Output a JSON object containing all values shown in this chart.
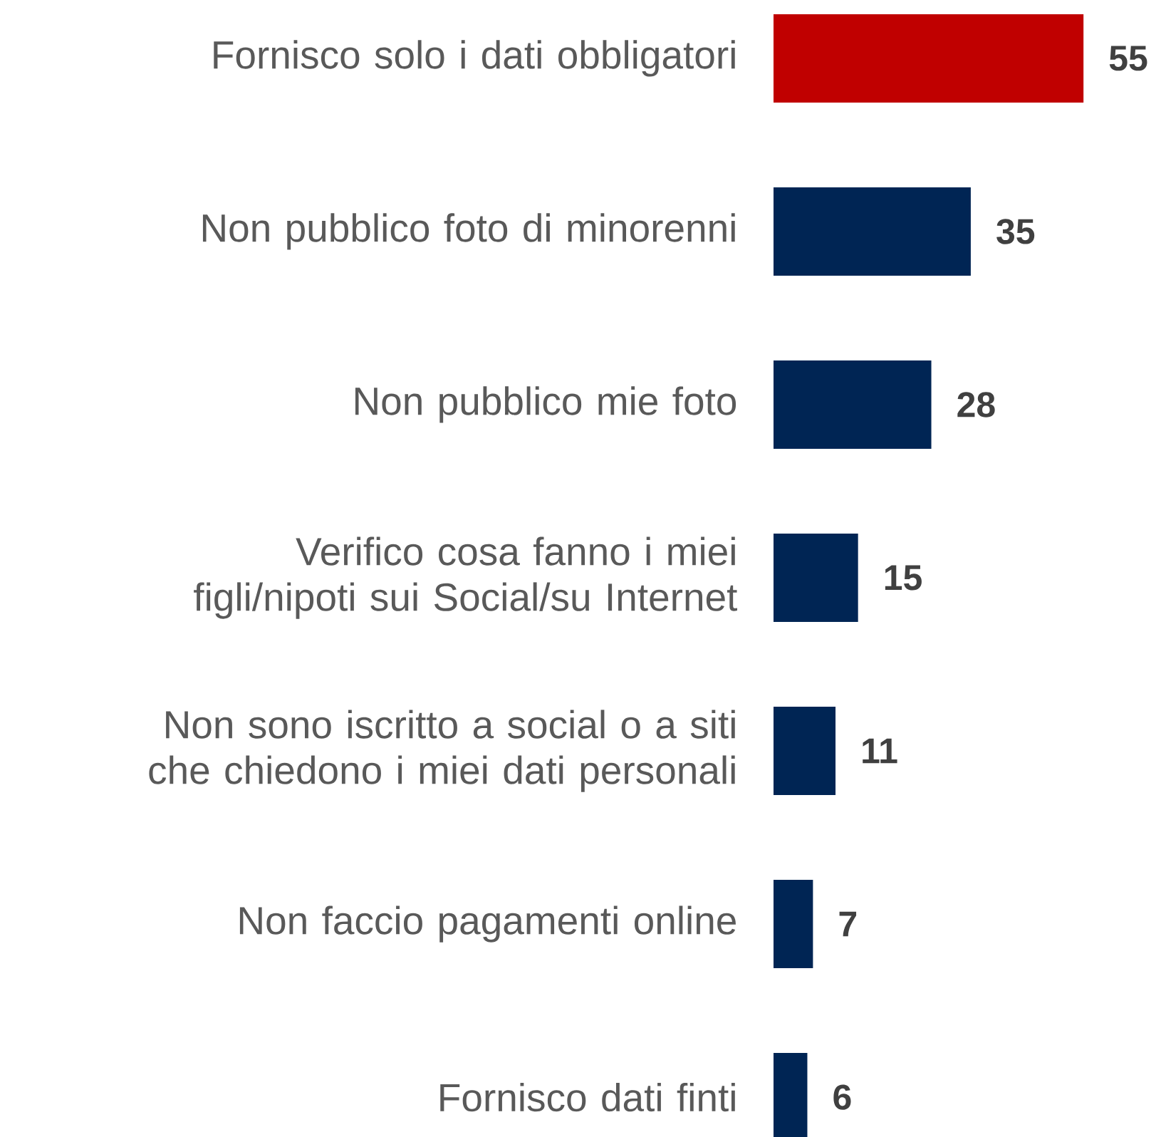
{
  "chart_data": {
    "type": "bar",
    "orientation": "horizontal",
    "data_labels": true,
    "categories": [
      "Fornisco solo i dati obbligatori",
      "Non pubblico foto di minorenni",
      "Non pubblico mie foto",
      "Verifico cosa fanno i miei figli/nipoti sui Social/su Internet",
      "Non sono iscritto a social o a siti che chiedono i miei dati personali",
      "Non faccio pagamenti online",
      "Fornisco dati finti"
    ],
    "values": [
      55,
      35,
      28,
      15,
      11,
      7,
      6
    ],
    "colors": [
      "#c00000",
      "#002554",
      "#002554",
      "#002554",
      "#002554",
      "#002554",
      "#002554"
    ]
  }
}
